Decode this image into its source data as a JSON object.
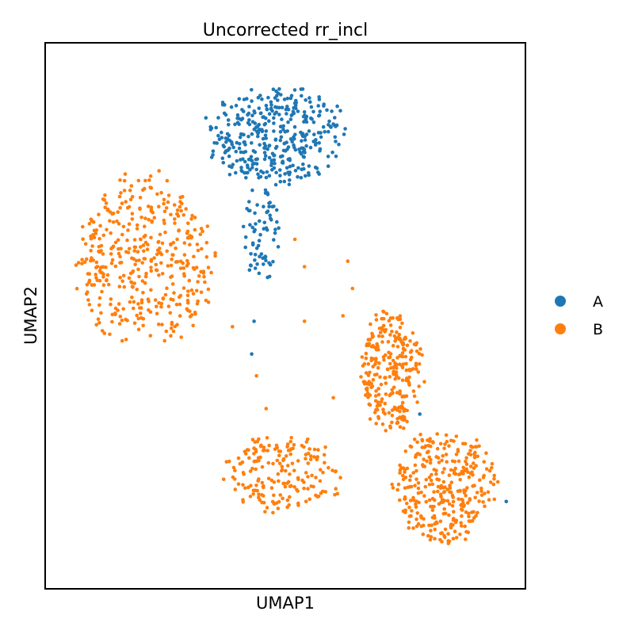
{
  "chart_data": {
    "type": "scatter",
    "title": "Uncorrected rr_incl",
    "xlabel": "UMAP1",
    "ylabel": "UMAP2",
    "xlim": [
      0,
      10
    ],
    "ylim": [
      0,
      10
    ],
    "grid": false,
    "ticks": false,
    "legend": {
      "placement": "right-outside"
    },
    "series": [
      {
        "name": "A",
        "color": "#1f77b4",
        "clusters": [
          {
            "cx": 4.8,
            "cy": 8.3,
            "rx": 1.55,
            "ry": 1.0,
            "n": 380
          },
          {
            "cx": 4.5,
            "cy": 6.5,
            "rx": 0.45,
            "ry": 0.9,
            "n": 70
          }
        ],
        "points": [
          [
            4.3,
            4.3
          ],
          [
            4.35,
            4.9
          ],
          [
            7.45,
            4.5
          ],
          [
            7.8,
            3.2
          ],
          [
            9.6,
            1.6
          ]
        ]
      },
      {
        "name": "B",
        "color": "#ff7f0e",
        "clusters": [
          {
            "cx": 2.1,
            "cy": 6.0,
            "rx": 1.55,
            "ry": 1.7,
            "n": 420
          },
          {
            "cx": 4.9,
            "cy": 2.1,
            "rx": 1.35,
            "ry": 0.8,
            "n": 190
          },
          {
            "cx": 7.2,
            "cy": 4.0,
            "rx": 0.75,
            "ry": 1.2,
            "n": 260
          },
          {
            "cx": 8.3,
            "cy": 1.9,
            "rx": 1.15,
            "ry": 1.15,
            "n": 330
          }
        ],
        "points": [
          [
            5.4,
            5.9
          ],
          [
            5.2,
            6.4
          ],
          [
            3.9,
            4.8
          ],
          [
            5.4,
            4.9
          ],
          [
            4.4,
            3.9
          ],
          [
            4.6,
            3.3
          ],
          [
            6.0,
            3.5
          ],
          [
            6.3,
            6.0
          ],
          [
            6.4,
            5.5
          ],
          [
            6.2,
            5.0
          ]
        ]
      }
    ]
  }
}
